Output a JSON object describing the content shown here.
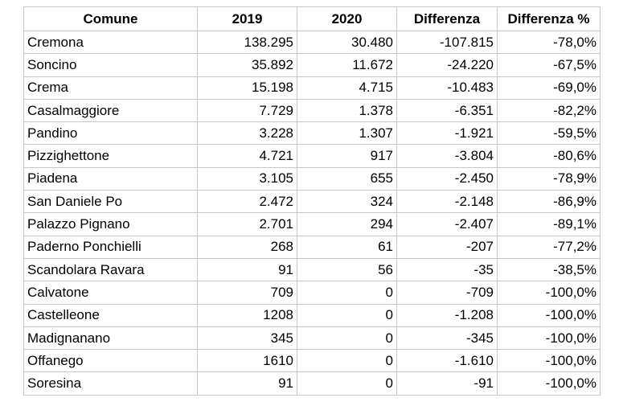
{
  "table": {
    "headers": [
      "Comune",
      "2019",
      "2020",
      "Differenza",
      "Differenza %"
    ],
    "rows": [
      [
        "Cremona",
        "138.295",
        "30.480",
        "-107.815",
        "-78,0%"
      ],
      [
        "Soncino",
        "35.892",
        "11.672",
        "-24.220",
        "-67,5%"
      ],
      [
        "Crema",
        "15.198",
        "4.715",
        "-10.483",
        "-69,0%"
      ],
      [
        "Casalmaggiore",
        "7.729",
        "1.378",
        "-6.351",
        "-82,2%"
      ],
      [
        "Pandino",
        "3.228",
        "1.307",
        "-1.921",
        "-59,5%"
      ],
      [
        "Pizzighettone",
        "4.721",
        "917",
        "-3.804",
        "-80,6%"
      ],
      [
        "Piadena",
        "3.105",
        "655",
        "-2.450",
        "-78,9%"
      ],
      [
        "San Daniele Po",
        "2.472",
        "324",
        "-2.148",
        "-86,9%"
      ],
      [
        "Palazzo Pignano",
        "2.701",
        "294",
        "-2.407",
        "-89,1%"
      ],
      [
        "Paderno Ponchielli",
        "268",
        "61",
        "-207",
        "-77,2%"
      ],
      [
        "Scandolara Ravara",
        "91",
        "56",
        "-35",
        "-38,5%"
      ],
      [
        "Calvatone",
        "709",
        "0",
        "-709",
        "-100,0%"
      ],
      [
        "Castelleone",
        "1208",
        "0",
        "-1.208",
        "-100,0%"
      ],
      [
        "Madignanano",
        "345",
        "0",
        "-345",
        "-100,0%"
      ],
      [
        "Offanego",
        "1610",
        "0",
        "-1.610",
        "-100,0%"
      ],
      [
        "Soresina",
        "91",
        "0",
        "-91",
        "-100,0%"
      ]
    ]
  }
}
